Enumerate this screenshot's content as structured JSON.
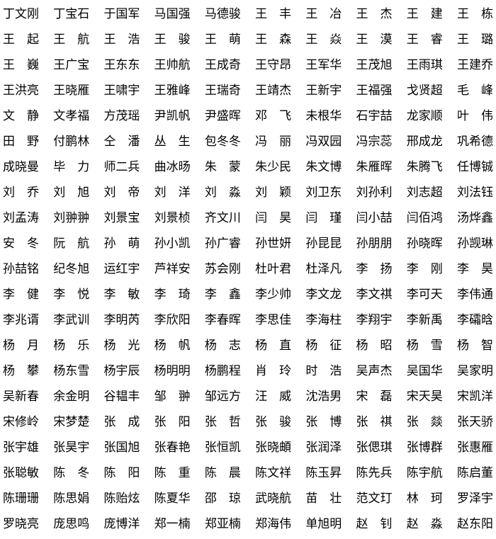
{
  "page": {
    "background_color": "#ffffff",
    "text_color": "#000000"
  },
  "name_grid": {
    "rows": [
      [
        "丁文刚",
        "丁宝石",
        "于国军",
        "马国强",
        "马德骏",
        "王丰",
        "王冶",
        "王杰",
        "王建",
        "王栋"
      ],
      [
        "王起",
        "王航",
        "王浩",
        "王骏",
        "王萌",
        "王森",
        "王焱",
        "王漠",
        "王睿",
        "王璐"
      ],
      [
        "王巍",
        "王广宝",
        "王东东",
        "王帅航",
        "王成奇",
        "王守昂",
        "王军华",
        "王茂旭",
        "王雨琪",
        "王建乔"
      ],
      [
        "王洪亮",
        "王晓雁",
        "王啸宇",
        "王雅峰",
        "王瑞奇",
        "王靖杰",
        "王新宇",
        "王福强",
        "戈贤超",
        "毛峰"
      ],
      [
        "文静",
        "文孝福",
        "方茂瑶",
        "尹凯帆",
        "尹盛晖",
        "邓飞",
        "未根华",
        "石宇喆",
        "龙家顺",
        "叶伟"
      ],
      [
        "田野",
        "付鹏林",
        "仝潘",
        "丛生",
        "包冬冬",
        "冯丽",
        "冯双园",
        "冯宗蕊",
        "邢成龙",
        "巩希德"
      ],
      [
        "成晓曼",
        "毕力",
        "师二兵",
        "曲冰旸",
        "朱蒙",
        "朱少民",
        "朱文博",
        "朱雁晖",
        "朱腾飞",
        "任博铖"
      ],
      [
        "刘乔",
        "刘旭",
        "刘帝",
        "刘洋",
        "刘淼",
        "刘颖",
        "刘卫东",
        "刘孙利",
        "刘志超",
        "刘法钰"
      ],
      [
        "刘孟涛",
        "刘翀翀",
        "刘景宝",
        "刘景桢",
        "齐文川",
        "闫昊",
        "闫瑾",
        "闫小喆",
        "闫佰鸿",
        "汤烨鑫"
      ],
      [
        "安冬",
        "阮航",
        "孙萌",
        "孙小凯",
        "孙广睿",
        "孙世妍",
        "孙昆昆",
        "孙朋朋",
        "孙晓晖",
        "孙觊琳"
      ],
      [
        "孙喆铭",
        "纪冬旭",
        "运红宇",
        "芦祥安",
        "苏会刚",
        "杜叶君",
        "杜泽凡",
        "李扬",
        "李刚",
        "李昊"
      ],
      [
        "李健",
        "李悦",
        "李敏",
        "李琦",
        "李鑫",
        "李少帅",
        "李文龙",
        "李文祺",
        "李可天",
        "李伟通"
      ],
      [
        "李兆谞",
        "李武训",
        "李明芮",
        "李欣阳",
        "李春晖",
        "李思佳",
        "李海柱",
        "李翔宇",
        "李新禹",
        "李礵晗"
      ],
      [
        "杨月",
        "杨乐",
        "杨光",
        "杨帆",
        "杨志",
        "杨直",
        "杨征",
        "杨昭",
        "杨雪",
        "杨智"
      ],
      [
        "杨攀",
        "杨东雪",
        "杨宇辰",
        "杨明明",
        "杨鹏程",
        "肖玲",
        "时浩",
        "吴声杰",
        "吴国华",
        "吴家明"
      ],
      [
        "吴新春",
        "余金明",
        "谷韫丰",
        "邹翀",
        "邹远方",
        "汪威",
        "沈浩男",
        "宋磊",
        "宋天昊",
        "宋凯洋"
      ],
      [
        "宋修岭",
        "宋梦楚",
        "张成",
        "张阳",
        "张哲",
        "张骏",
        "张博",
        "张祺",
        "张燚",
        "张天骄"
      ],
      [
        "张宇雄",
        "张昊宇",
        "张国旭",
        "张春艳",
        "张恒凯",
        "张晓頔",
        "张润泽",
        "张偲琪",
        "张博群",
        "张惠雁"
      ],
      [
        "张聪敏",
        "陈冬",
        "陈阳",
        "陈重",
        "陈晨",
        "陈文祥",
        "陈玉昇",
        "陈先兵",
        "陈宇航",
        "陈启董"
      ],
      [
        "陈珊珊",
        "陈思娟",
        "陈贻炫",
        "陈夏华",
        "邵琼",
        "武晓航",
        "苗壮",
        "范文玎",
        "林珂",
        "罗泽宇"
      ],
      [
        "罗晓亮",
        "庞思鸣",
        "庞博洋",
        "郑一楠",
        "郑亚楠",
        "郑海伟",
        "单旭明",
        "赵钊",
        "赵淼",
        "赵东阳"
      ]
    ]
  }
}
